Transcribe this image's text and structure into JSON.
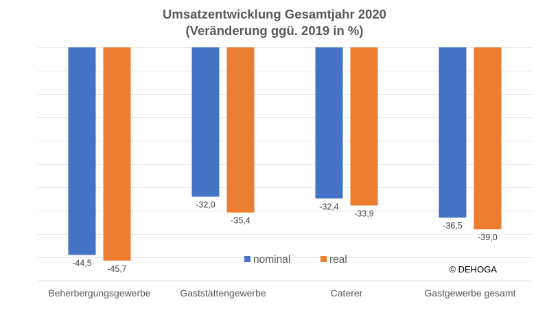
{
  "chart_data": {
    "type": "bar",
    "title": "Umsatzentwicklung Gesamtjahr 2020",
    "subtitle": "(Veränderung ggü. 2019 in %)",
    "xlabel": "",
    "ylabel": "",
    "categories": [
      "Beherbergungsgewerbe",
      "Gaststättengewerbe",
      "Caterer",
      "Gastgewerbe gesamt"
    ],
    "series": [
      {
        "name": "nominal",
        "color": "#4472C4",
        "values": [
          -44.5,
          -32.0,
          -32.4,
          -36.5
        ],
        "labels": [
          "-44,5",
          "-32,0",
          "-32,4",
          "-36,5"
        ]
      },
      {
        "name": "real",
        "color": "#ED7D31",
        "values": [
          -45.7,
          -35.4,
          -33.9,
          -39.0
        ],
        "labels": [
          "-45,7",
          "-35,4",
          "-33,9",
          "-39,0"
        ]
      }
    ],
    "ylim": [
      -50,
      0
    ],
    "ytick_step": 5,
    "y_tick_labels_visible": false,
    "grid": true,
    "legend_position": "bottom-center-inside",
    "annotation": "© DEHOGA"
  }
}
